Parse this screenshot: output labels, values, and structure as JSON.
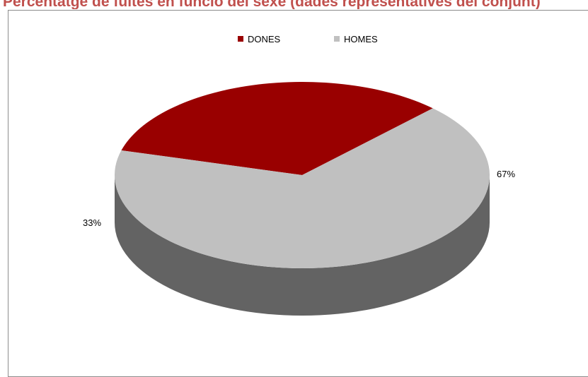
{
  "header_text": "Percentatge de fuites en funció del sexe (dades representatives del conjunt)",
  "chart_data": {
    "type": "pie",
    "title": "",
    "categories": [
      "DONES",
      "HOMES"
    ],
    "values": [
      33,
      67
    ],
    "value_labels": [
      "33%",
      "67%"
    ],
    "colors": [
      "#990000",
      "#c0c0c0"
    ],
    "legend": {
      "placement": "top",
      "entries": [
        "DONES",
        "HOMES"
      ]
    },
    "style": "3d"
  }
}
